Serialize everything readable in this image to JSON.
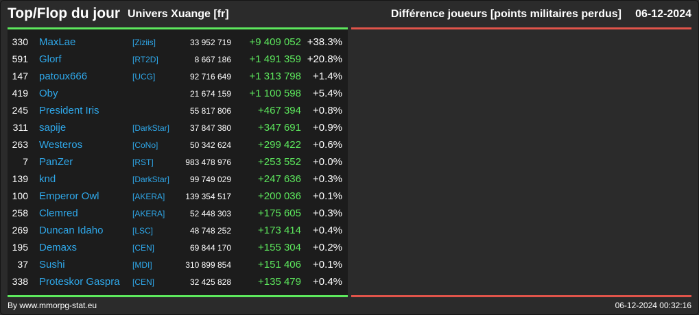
{
  "header": {
    "title": "Top/Flop du jour",
    "universe": "Univers Xuange [fr]",
    "subtitle": "Différence joueurs [points militaires perdus]",
    "date": "06-12-2024"
  },
  "colors": {
    "background": "#2b2b2b",
    "panel": "#1c1c1c",
    "top_accent": "#5de85d",
    "flop_accent": "#e0544a",
    "link": "#2fa8ea",
    "positive": "#5de85d"
  },
  "top_rows": [
    {
      "rank": "330",
      "name": "MaxLae",
      "tag": "[Ziziis]",
      "points": "33 952 719",
      "diff": "+9 409 052",
      "pct": "+38.3%"
    },
    {
      "rank": "591",
      "name": "Glorf",
      "tag": "[RT2D]",
      "points": "8 667 186",
      "diff": "+1 491 359",
      "pct": "+20.8%"
    },
    {
      "rank": "147",
      "name": "patoux666",
      "tag": "[UCG]",
      "points": "92 716 649",
      "diff": "+1 313 798",
      "pct": "+1.4%"
    },
    {
      "rank": "419",
      "name": "Oby",
      "tag": "",
      "points": "21 674 159",
      "diff": "+1 100 598",
      "pct": "+5.4%"
    },
    {
      "rank": "245",
      "name": "President Iris",
      "tag": "",
      "points": "55 817 806",
      "diff": "+467 394",
      "pct": "+0.8%"
    },
    {
      "rank": "311",
      "name": "sapije",
      "tag": "[DarkStar]",
      "points": "37 847 380",
      "diff": "+347 691",
      "pct": "+0.9%"
    },
    {
      "rank": "263",
      "name": "Westeros",
      "tag": "[CoNo]",
      "points": "50 342 624",
      "diff": "+299 422",
      "pct": "+0.6%"
    },
    {
      "rank": "7",
      "name": "PanZer",
      "tag": "[RST]",
      "points": "983 478 976",
      "diff": "+253 552",
      "pct": "+0.0%"
    },
    {
      "rank": "139",
      "name": "knd",
      "tag": "[DarkStar]",
      "points": "99 749 029",
      "diff": "+247 636",
      "pct": "+0.3%"
    },
    {
      "rank": "100",
      "name": "Emperor Owl",
      "tag": "[AKERA]",
      "points": "139 354 517",
      "diff": "+200 036",
      "pct": "+0.1%"
    },
    {
      "rank": "258",
      "name": "Clemred",
      "tag": "[AKERA]",
      "points": "52 448 303",
      "diff": "+175 605",
      "pct": "+0.3%"
    },
    {
      "rank": "269",
      "name": "Duncan Idaho",
      "tag": "[LSC]",
      "points": "48 748 252",
      "diff": "+173 414",
      "pct": "+0.4%"
    },
    {
      "rank": "195",
      "name": "Demaxs",
      "tag": "[CEN]",
      "points": "69 844 170",
      "diff": "+155 304",
      "pct": "+0.2%"
    },
    {
      "rank": "37",
      "name": "Sushi",
      "tag": "[MDI]",
      "points": "310 899 854",
      "diff": "+151 406",
      "pct": "+0.1%"
    },
    {
      "rank": "338",
      "name": "Proteskor Gaspra",
      "tag": "[CEN]",
      "points": "32 425 828",
      "diff": "+135 479",
      "pct": "+0.4%"
    }
  ],
  "footer": {
    "credit": "By www.mmorpg-stat.eu",
    "timestamp": "06-12-2024 00:32:16"
  }
}
